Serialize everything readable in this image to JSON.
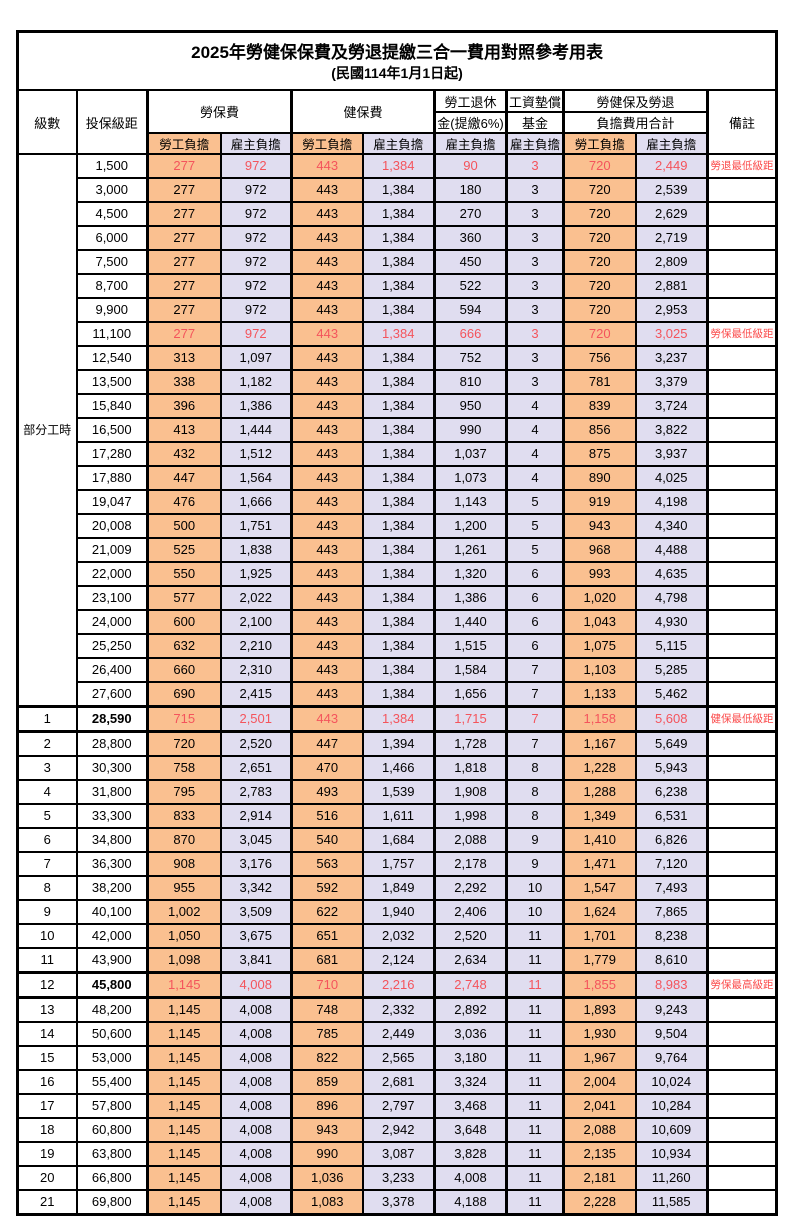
{
  "page": {
    "title": "2025年勞健保保費及勞退提繳三合一費用對照參考用表",
    "subtitle": "(民國114年1月1日起)"
  },
  "columns": {
    "level": "級數",
    "salary_bracket": "投保級距",
    "labor_fee": "勞保費",
    "health_fee": "健保費",
    "pension_line1": "勞工退休",
    "pension_line2": "金(提繳6%)",
    "wage_fund_line1": "工資墊償",
    "wage_fund_line2": "基金",
    "total_line1": "勞健保及勞退",
    "total_line2": "負擔費用合計",
    "remark": "備註",
    "employee_share": "勞工負擔",
    "employer_share": "雇主負擔"
  },
  "part_time_group_label": "部分工時",
  "colors": {
    "employee_bg": "#fac090",
    "employer_bg": "#e0ddf0",
    "highlight_text": "#f4545c",
    "remark_text": "#fb4b4b",
    "border": "#000000"
  },
  "rows": [
    {
      "level": "",
      "salary": "1,500",
      "cells": [
        "277",
        "972",
        "443",
        "1,384",
        "90",
        "3",
        "720",
        "2,449"
      ],
      "remark": "勞退最低級距",
      "red": true,
      "thick": false,
      "bold_salary": false
    },
    {
      "level": "",
      "salary": "3,000",
      "cells": [
        "277",
        "972",
        "443",
        "1,384",
        "180",
        "3",
        "720",
        "2,539"
      ],
      "remark": "",
      "red": false,
      "thick": false,
      "bold_salary": false
    },
    {
      "level": "",
      "salary": "4,500",
      "cells": [
        "277",
        "972",
        "443",
        "1,384",
        "270",
        "3",
        "720",
        "2,629"
      ],
      "remark": "",
      "red": false,
      "thick": false,
      "bold_salary": false
    },
    {
      "level": "",
      "salary": "6,000",
      "cells": [
        "277",
        "972",
        "443",
        "1,384",
        "360",
        "3",
        "720",
        "2,719"
      ],
      "remark": "",
      "red": false,
      "thick": false,
      "bold_salary": false
    },
    {
      "level": "",
      "salary": "7,500",
      "cells": [
        "277",
        "972",
        "443",
        "1,384",
        "450",
        "3",
        "720",
        "2,809"
      ],
      "remark": "",
      "red": false,
      "thick": false,
      "bold_salary": false
    },
    {
      "level": "",
      "salary": "8,700",
      "cells": [
        "277",
        "972",
        "443",
        "1,384",
        "522",
        "3",
        "720",
        "2,881"
      ],
      "remark": "",
      "red": false,
      "thick": false,
      "bold_salary": false
    },
    {
      "level": "",
      "salary": "9,900",
      "cells": [
        "277",
        "972",
        "443",
        "1,384",
        "594",
        "3",
        "720",
        "2,953"
      ],
      "remark": "",
      "red": false,
      "thick": false,
      "bold_salary": false
    },
    {
      "level": "",
      "salary": "11,100",
      "cells": [
        "277",
        "972",
        "443",
        "1,384",
        "666",
        "3",
        "720",
        "3,025"
      ],
      "remark": "勞保最低級距",
      "red": true,
      "thick": false,
      "bold_salary": false
    },
    {
      "level": "",
      "salary": "12,540",
      "cells": [
        "313",
        "1,097",
        "443",
        "1,384",
        "752",
        "3",
        "756",
        "3,237"
      ],
      "remark": "",
      "red": false,
      "thick": false,
      "bold_salary": false
    },
    {
      "level": "",
      "salary": "13,500",
      "cells": [
        "338",
        "1,182",
        "443",
        "1,384",
        "810",
        "3",
        "781",
        "3,379"
      ],
      "remark": "",
      "red": false,
      "thick": false,
      "bold_salary": false
    },
    {
      "level": "",
      "salary": "15,840",
      "cells": [
        "396",
        "1,386",
        "443",
        "1,384",
        "950",
        "4",
        "839",
        "3,724"
      ],
      "remark": "",
      "red": false,
      "thick": false,
      "bold_salary": false
    },
    {
      "level": "",
      "salary": "16,500",
      "cells": [
        "413",
        "1,444",
        "443",
        "1,384",
        "990",
        "4",
        "856",
        "3,822"
      ],
      "remark": "",
      "red": false,
      "thick": false,
      "bold_salary": false
    },
    {
      "level": "",
      "salary": "17,280",
      "cells": [
        "432",
        "1,512",
        "443",
        "1,384",
        "1,037",
        "4",
        "875",
        "3,937"
      ],
      "remark": "",
      "red": false,
      "thick": false,
      "bold_salary": false
    },
    {
      "level": "",
      "salary": "17,880",
      "cells": [
        "447",
        "1,564",
        "443",
        "1,384",
        "1,073",
        "4",
        "890",
        "4,025"
      ],
      "remark": "",
      "red": false,
      "thick": false,
      "bold_salary": false
    },
    {
      "level": "",
      "salary": "19,047",
      "cells": [
        "476",
        "1,666",
        "443",
        "1,384",
        "1,143",
        "5",
        "919",
        "4,198"
      ],
      "remark": "",
      "red": false,
      "thick": false,
      "bold_salary": false
    },
    {
      "level": "",
      "salary": "20,008",
      "cells": [
        "500",
        "1,751",
        "443",
        "1,384",
        "1,200",
        "5",
        "943",
        "4,340"
      ],
      "remark": "",
      "red": false,
      "thick": false,
      "bold_salary": false
    },
    {
      "level": "",
      "salary": "21,009",
      "cells": [
        "525",
        "1,838",
        "443",
        "1,384",
        "1,261",
        "5",
        "968",
        "4,488"
      ],
      "remark": "",
      "red": false,
      "thick": false,
      "bold_salary": false
    },
    {
      "level": "",
      "salary": "22,000",
      "cells": [
        "550",
        "1,925",
        "443",
        "1,384",
        "1,320",
        "6",
        "993",
        "4,635"
      ],
      "remark": "",
      "red": false,
      "thick": false,
      "bold_salary": false
    },
    {
      "level": "",
      "salary": "23,100",
      "cells": [
        "577",
        "2,022",
        "443",
        "1,384",
        "1,386",
        "6",
        "1,020",
        "4,798"
      ],
      "remark": "",
      "red": false,
      "thick": false,
      "bold_salary": false
    },
    {
      "level": "",
      "salary": "24,000",
      "cells": [
        "600",
        "2,100",
        "443",
        "1,384",
        "1,440",
        "6",
        "1,043",
        "4,930"
      ],
      "remark": "",
      "red": false,
      "thick": false,
      "bold_salary": false
    },
    {
      "level": "",
      "salary": "25,250",
      "cells": [
        "632",
        "2,210",
        "443",
        "1,384",
        "1,515",
        "6",
        "1,075",
        "5,115"
      ],
      "remark": "",
      "red": false,
      "thick": false,
      "bold_salary": false
    },
    {
      "level": "",
      "salary": "26,400",
      "cells": [
        "660",
        "2,310",
        "443",
        "1,384",
        "1,584",
        "7",
        "1,103",
        "5,285"
      ],
      "remark": "",
      "red": false,
      "thick": false,
      "bold_salary": false
    },
    {
      "level": "",
      "salary": "27,600",
      "cells": [
        "690",
        "2,415",
        "443",
        "1,384",
        "1,656",
        "7",
        "1,133",
        "5,462"
      ],
      "remark": "",
      "red": false,
      "thick": false,
      "bold_salary": false
    },
    {
      "level": "1",
      "salary": "28,590",
      "cells": [
        "715",
        "2,501",
        "443",
        "1,384",
        "1,715",
        "7",
        "1,158",
        "5,608"
      ],
      "remark": "健保最低級距",
      "red": true,
      "thick": true,
      "bold_salary": true
    },
    {
      "level": "2",
      "salary": "28,800",
      "cells": [
        "720",
        "2,520",
        "447",
        "1,394",
        "1,728",
        "7",
        "1,167",
        "5,649"
      ],
      "remark": "",
      "red": false,
      "thick": false,
      "bold_salary": false
    },
    {
      "level": "3",
      "salary": "30,300",
      "cells": [
        "758",
        "2,651",
        "470",
        "1,466",
        "1,818",
        "8",
        "1,228",
        "5,943"
      ],
      "remark": "",
      "red": false,
      "thick": false,
      "bold_salary": false
    },
    {
      "level": "4",
      "salary": "31,800",
      "cells": [
        "795",
        "2,783",
        "493",
        "1,539",
        "1,908",
        "8",
        "1,288",
        "6,238"
      ],
      "remark": "",
      "red": false,
      "thick": false,
      "bold_salary": false
    },
    {
      "level": "5",
      "salary": "33,300",
      "cells": [
        "833",
        "2,914",
        "516",
        "1,611",
        "1,998",
        "8",
        "1,349",
        "6,531"
      ],
      "remark": "",
      "red": false,
      "thick": false,
      "bold_salary": false
    },
    {
      "level": "6",
      "salary": "34,800",
      "cells": [
        "870",
        "3,045",
        "540",
        "1,684",
        "2,088",
        "9",
        "1,410",
        "6,826"
      ],
      "remark": "",
      "red": false,
      "thick": false,
      "bold_salary": false
    },
    {
      "level": "7",
      "salary": "36,300",
      "cells": [
        "908",
        "3,176",
        "563",
        "1,757",
        "2,178",
        "9",
        "1,471",
        "7,120"
      ],
      "remark": "",
      "red": false,
      "thick": false,
      "bold_salary": false
    },
    {
      "level": "8",
      "salary": "38,200",
      "cells": [
        "955",
        "3,342",
        "592",
        "1,849",
        "2,292",
        "10",
        "1,547",
        "7,493"
      ],
      "remark": "",
      "red": false,
      "thick": false,
      "bold_salary": false
    },
    {
      "level": "9",
      "salary": "40,100",
      "cells": [
        "1,002",
        "3,509",
        "622",
        "1,940",
        "2,406",
        "10",
        "1,624",
        "7,865"
      ],
      "remark": "",
      "red": false,
      "thick": false,
      "bold_salary": false
    },
    {
      "level": "10",
      "salary": "42,000",
      "cells": [
        "1,050",
        "3,675",
        "651",
        "2,032",
        "2,520",
        "11",
        "1,701",
        "8,238"
      ],
      "remark": "",
      "red": false,
      "thick": false,
      "bold_salary": false
    },
    {
      "level": "11",
      "salary": "43,900",
      "cells": [
        "1,098",
        "3,841",
        "681",
        "2,124",
        "2,634",
        "11",
        "1,779",
        "8,610"
      ],
      "remark": "",
      "red": false,
      "thick": false,
      "bold_salary": false
    },
    {
      "level": "12",
      "salary": "45,800",
      "cells": [
        "1,145",
        "4,008",
        "710",
        "2,216",
        "2,748",
        "11",
        "1,855",
        "8,983"
      ],
      "remark": "勞保最高級距",
      "red": true,
      "thick": true,
      "bold_salary": true
    },
    {
      "level": "13",
      "salary": "48,200",
      "cells": [
        "1,145",
        "4,008",
        "748",
        "2,332",
        "2,892",
        "11",
        "1,893",
        "9,243"
      ],
      "remark": "",
      "red": false,
      "thick": false,
      "bold_salary": false
    },
    {
      "level": "14",
      "salary": "50,600",
      "cells": [
        "1,145",
        "4,008",
        "785",
        "2,449",
        "3,036",
        "11",
        "1,930",
        "9,504"
      ],
      "remark": "",
      "red": false,
      "thick": false,
      "bold_salary": false
    },
    {
      "level": "15",
      "salary": "53,000",
      "cells": [
        "1,145",
        "4,008",
        "822",
        "2,565",
        "3,180",
        "11",
        "1,967",
        "9,764"
      ],
      "remark": "",
      "red": false,
      "thick": false,
      "bold_salary": false
    },
    {
      "level": "16",
      "salary": "55,400",
      "cells": [
        "1,145",
        "4,008",
        "859",
        "2,681",
        "3,324",
        "11",
        "2,004",
        "10,024"
      ],
      "remark": "",
      "red": false,
      "thick": false,
      "bold_salary": false
    },
    {
      "level": "17",
      "salary": "57,800",
      "cells": [
        "1,145",
        "4,008",
        "896",
        "2,797",
        "3,468",
        "11",
        "2,041",
        "10,284"
      ],
      "remark": "",
      "red": false,
      "thick": false,
      "bold_salary": false
    },
    {
      "level": "18",
      "salary": "60,800",
      "cells": [
        "1,145",
        "4,008",
        "943",
        "2,942",
        "3,648",
        "11",
        "2,088",
        "10,609"
      ],
      "remark": "",
      "red": false,
      "thick": false,
      "bold_salary": false
    },
    {
      "level": "19",
      "salary": "63,800",
      "cells": [
        "1,145",
        "4,008",
        "990",
        "3,087",
        "3,828",
        "11",
        "2,135",
        "10,934"
      ],
      "remark": "",
      "red": false,
      "thick": false,
      "bold_salary": false
    },
    {
      "level": "20",
      "salary": "66,800",
      "cells": [
        "1,145",
        "4,008",
        "1,036",
        "3,233",
        "4,008",
        "11",
        "2,181",
        "11,260"
      ],
      "remark": "",
      "red": false,
      "thick": false,
      "bold_salary": false
    },
    {
      "level": "21",
      "salary": "69,800",
      "cells": [
        "1,145",
        "4,008",
        "1,083",
        "3,378",
        "4,188",
        "11",
        "2,228",
        "11,585"
      ],
      "remark": "",
      "red": false,
      "thick": false,
      "bold_salary": false
    }
  ]
}
